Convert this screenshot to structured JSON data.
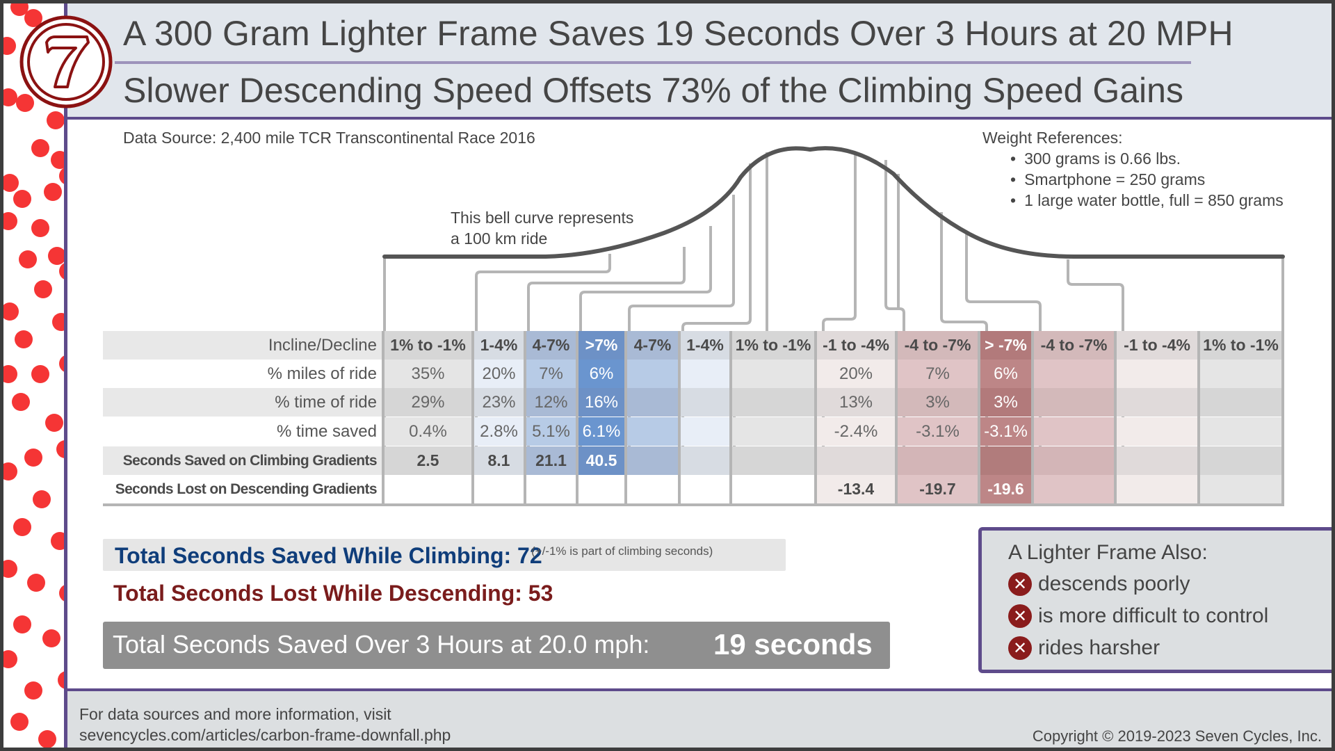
{
  "header": {
    "title": "A 300 Gram Lighter Frame Saves 19 Seconds Over 3 Hours at 20 MPH",
    "subtitle": "Slower Descending Speed Offsets 73% of the Climbing Speed Gains",
    "logo_glyph": "7"
  },
  "data_source": "Data Source:  2,400 mile TCR Transcontinental Race 2016",
  "weight_refs": {
    "title": "Weight References:",
    "items": [
      "300 grams is 0.66 lbs.",
      "Smartphone = 250 grams",
      "1 large water bottle, full = 850 grams"
    ]
  },
  "bell_note": {
    "line1": "This bell curve represents",
    "line2": "a 100 km ride"
  },
  "table": {
    "row_labels": [
      "Incline/Decline",
      "% miles of ride",
      "% time of ride",
      "% time saved",
      "Seconds Saved on Climbing Gradients",
      "Seconds Lost on Descending Gradients"
    ],
    "columns": [
      {
        "grade": "1% to -1%",
        "miles": "35%",
        "time": "29%",
        "saved_pct": "0.4%",
        "sec_saved": "2.5",
        "sec_lost": ""
      },
      {
        "grade": "1-4%",
        "miles": "20%",
        "time": "23%",
        "saved_pct": "2.8%",
        "sec_saved": "8.1",
        "sec_lost": ""
      },
      {
        "grade": "4-7%",
        "miles": "7%",
        "time": "12%",
        "saved_pct": "5.1%",
        "sec_saved": "21.1",
        "sec_lost": ""
      },
      {
        "grade": ">7%",
        "miles": "6%",
        "time": "16%",
        "saved_pct": "6.1%",
        "sec_saved": "40.5",
        "sec_lost": ""
      },
      {
        "grade": "4-7%",
        "miles": "",
        "time": "",
        "saved_pct": "",
        "sec_saved": "",
        "sec_lost": ""
      },
      {
        "grade": "1-4%",
        "miles": "",
        "time": "",
        "saved_pct": "",
        "sec_saved": "",
        "sec_lost": ""
      },
      {
        "grade": "1% to -1%",
        "miles": "",
        "time": "",
        "saved_pct": "",
        "sec_saved": "",
        "sec_lost": ""
      },
      {
        "grade": "-1 to -4%",
        "miles": "20%",
        "time": "13%",
        "saved_pct": "-2.4%",
        "sec_saved": "",
        "sec_lost": "-13.4"
      },
      {
        "grade": "-4 to -7%",
        "miles": "7%",
        "time": "3%",
        "saved_pct": "-3.1%",
        "sec_saved": "",
        "sec_lost": "-19.7"
      },
      {
        "grade": "> -7%",
        "miles": "6%",
        "time": "3%",
        "saved_pct": "-3.1%",
        "sec_saved": "",
        "sec_lost": "-19.6"
      },
      {
        "grade": "-4 to -7%",
        "miles": "",
        "time": "",
        "saved_pct": "",
        "sec_saved": "",
        "sec_lost": ""
      },
      {
        "grade": "-1 to -4%",
        "miles": "",
        "time": "",
        "saved_pct": "",
        "sec_saved": "",
        "sec_lost": ""
      },
      {
        "grade": "1% to -1%",
        "miles": "",
        "time": "",
        "saved_pct": "",
        "sec_saved": "",
        "sec_lost": ""
      }
    ]
  },
  "totals": {
    "climb_label": "Total Seconds Saved While Climbing:  72",
    "climb_note": "(+/-1% is part of climbing seconds)",
    "descend_label": "Total Seconds Lost While Descending:  53",
    "saved_label": "Total Seconds Saved Over 3 Hours at 20.0 mph:",
    "saved_value": "19 seconds"
  },
  "also_box": {
    "title": "A Lighter Frame Also:",
    "items": [
      "descends poorly",
      "is more difficult to control",
      "rides harsher"
    ],
    "icon": "x-circle-icon"
  },
  "footer": {
    "line1": "For data sources and more information, visit",
    "line2": "sevencycles.com/articles/carbon-frame-downfall.php",
    "copyright": "Copyright © 2019-2023 Seven Cycles, Inc."
  },
  "colors": {
    "purple": "#5e4b8b",
    "header_bg": "#e1e6ec",
    "climb_blue": "#0f3d7a",
    "descend_red": "#7a1c1c",
    "dot_red": "#f53535"
  },
  "chart_data": {
    "type": "table",
    "title": "A 300 Gram Lighter Frame Saves 19 Seconds Over 3 Hours at 20 MPH",
    "subtitle": "Slower Descending Speed Offsets 73% of the Climbing Speed Gains",
    "categories": [
      "1% to -1%",
      "1-4%",
      "4-7%",
      ">7%",
      "-1 to -4%",
      "-4 to -7%",
      "> -7%"
    ],
    "series": [
      {
        "name": "% miles of ride",
        "values": [
          35,
          20,
          7,
          6,
          20,
          7,
          6
        ]
      },
      {
        "name": "% time of ride",
        "values": [
          29,
          23,
          12,
          16,
          13,
          3,
          3
        ]
      },
      {
        "name": "% time saved",
        "values": [
          0.4,
          2.8,
          5.1,
          6.1,
          -2.4,
          -3.1,
          -3.1
        ]
      },
      {
        "name": "Seconds Saved on Climbing Gradients",
        "values": [
          2.5,
          8.1,
          21.1,
          40.5,
          null,
          null,
          null
        ]
      },
      {
        "name": "Seconds Lost on Descending Gradients",
        "values": [
          null,
          null,
          null,
          null,
          -13.4,
          -19.7,
          -19.6
        ]
      }
    ],
    "totals": {
      "climbing_saved_s": 72,
      "descending_lost_s": 53,
      "net_saved_s": 19,
      "duration_h": 3,
      "speed_mph": 20.0
    },
    "annotations": [
      "This bell curve represents a 100 km ride",
      "Data Source: 2,400 mile TCR Transcontinental Race 2016"
    ]
  }
}
